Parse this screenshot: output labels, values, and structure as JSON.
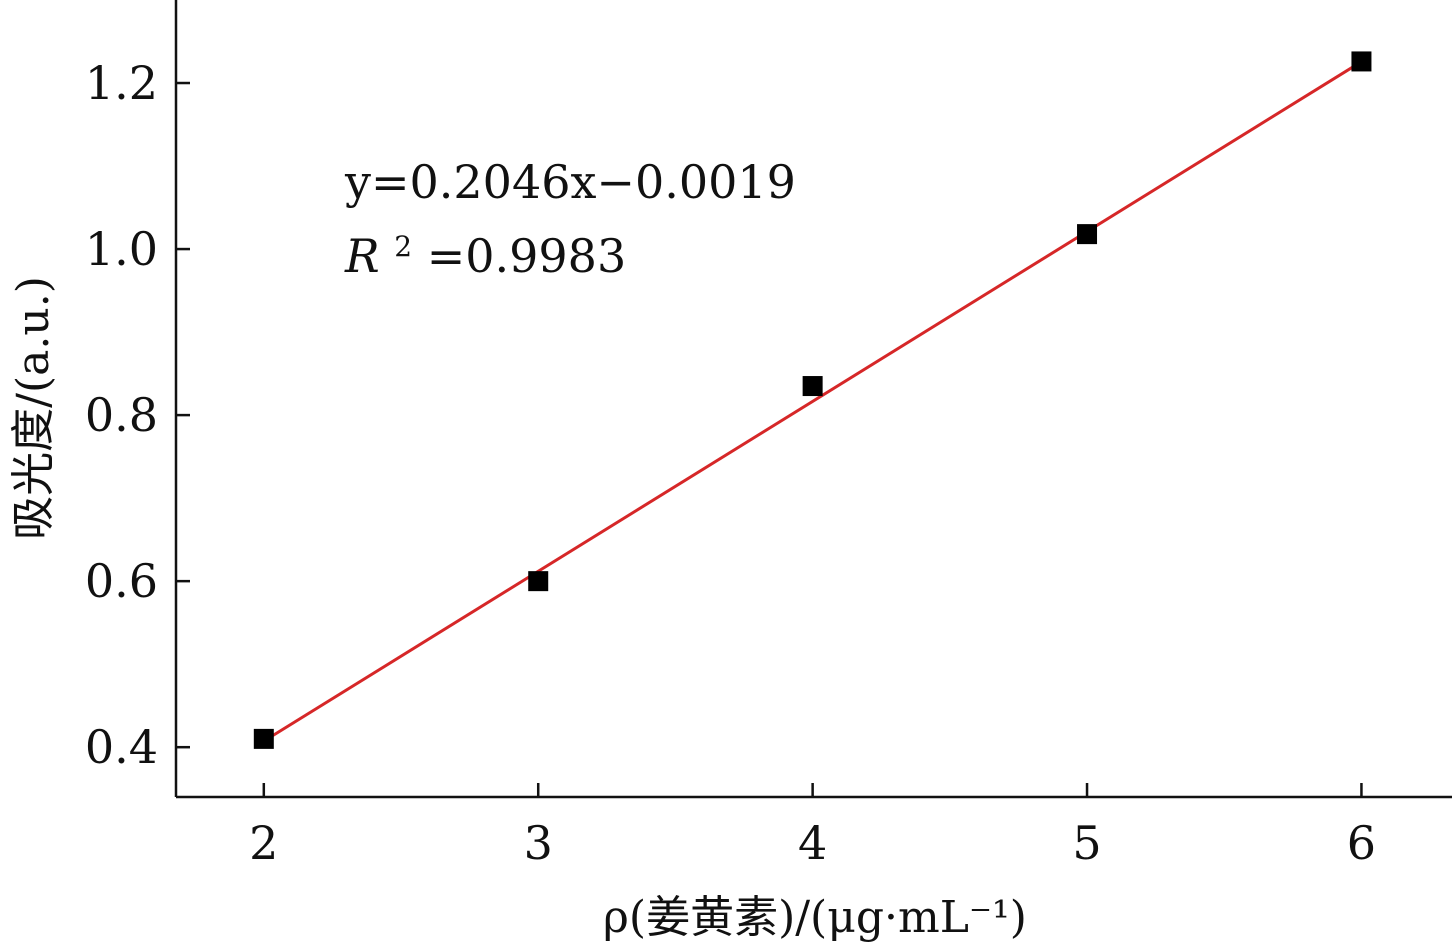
{
  "chart_data": {
    "type": "scatter",
    "title": "",
    "xlabel": "ρ(姜黄素)/(μg·mL⁻¹)",
    "ylabel": "吸光度/(a.u.)",
    "xlim": [
      1.68,
      6.33
    ],
    "ylim": [
      0.34,
      1.3
    ],
    "xticks": [
      2,
      3,
      4,
      5,
      6
    ],
    "yticks": [
      0.4,
      0.6,
      0.8,
      1.0,
      1.2
    ],
    "xtick_labels": [
      "2",
      "3",
      "4",
      "5",
      "6"
    ],
    "ytick_labels": [
      "0.4",
      "0.6",
      "0.8",
      "1.0",
      "1.2"
    ],
    "series": [
      {
        "type": "scatter",
        "x": [
          2,
          3,
          4,
          5,
          6
        ],
        "y": [
          0.41,
          0.6,
          0.835,
          1.018,
          1.226
        ],
        "color": "#000000",
        "marker": "square"
      }
    ],
    "fit_line": {
      "slope": 0.2046,
      "intercept": -0.0019,
      "x_range": [
        2,
        6
      ],
      "color": "#d62728"
    },
    "annotations": {
      "equation": "y=0.2046x−0.0019",
      "r_squared_label": "R",
      "r_squared_exponent": "2",
      "r_squared_value": "=0.9983"
    },
    "grid": false,
    "legend": "none"
  }
}
